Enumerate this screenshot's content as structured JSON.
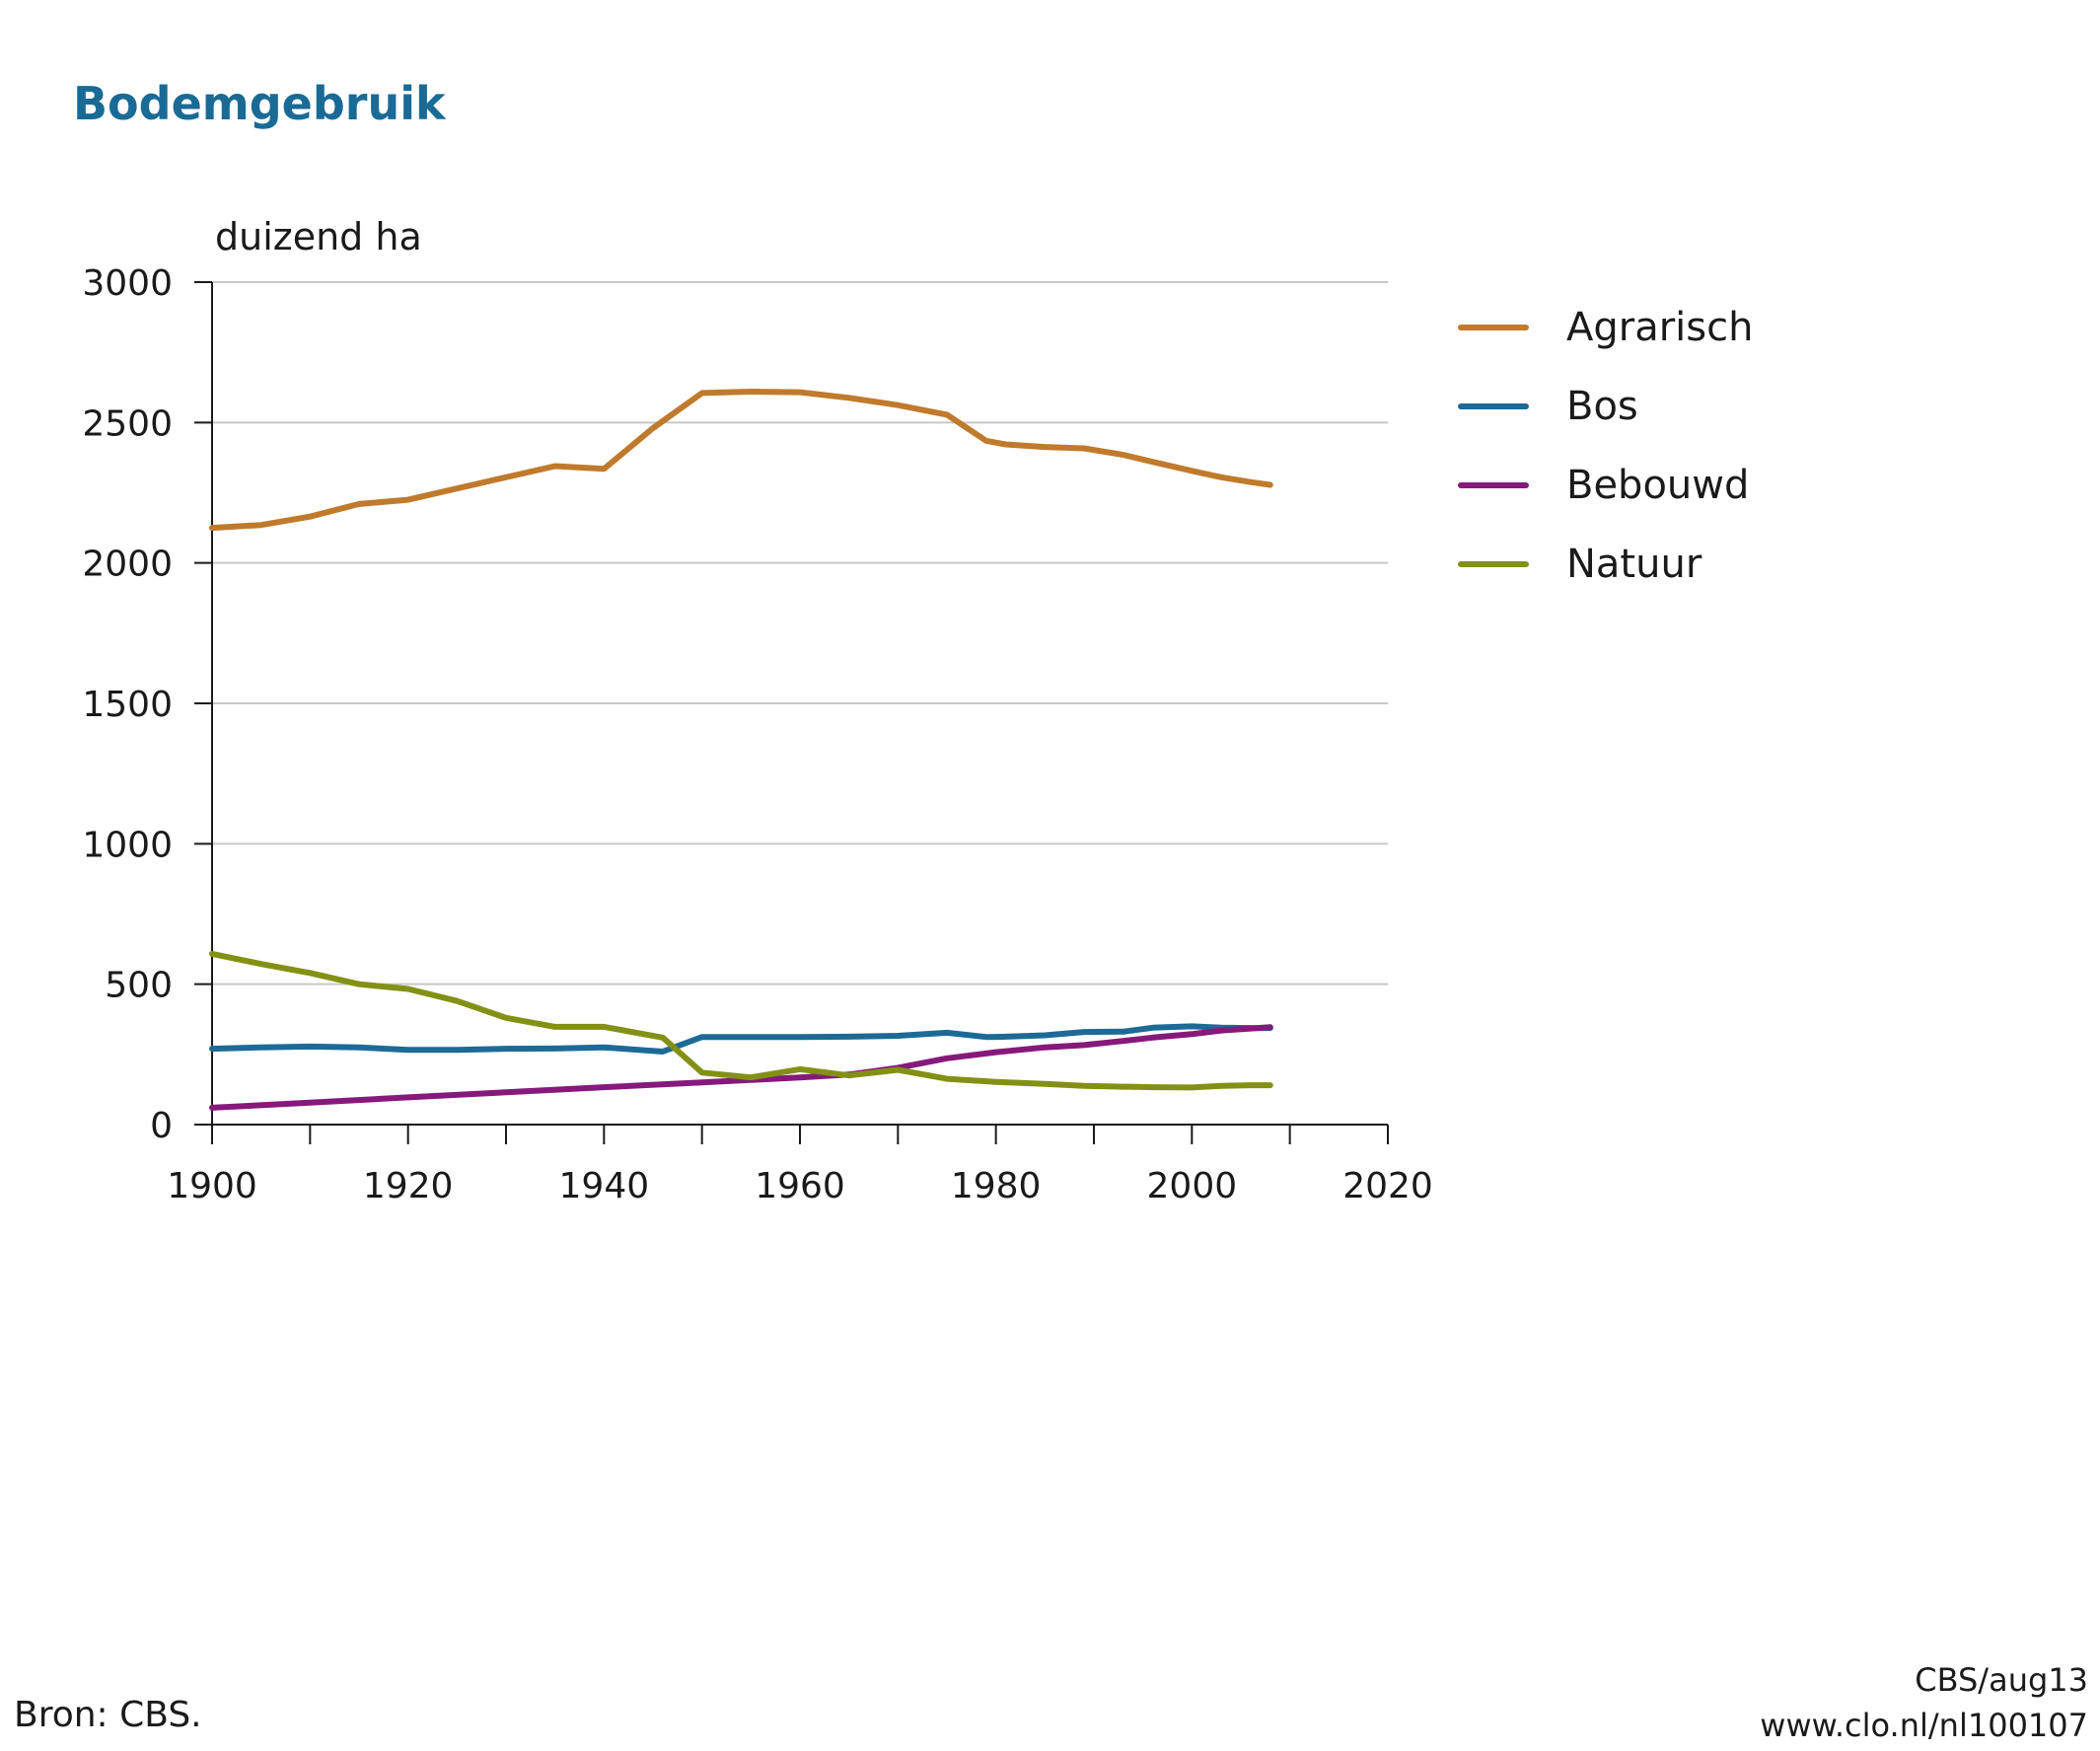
{
  "page": {
    "source": "Bron: CBS.",
    "credit_line1": "CBS/aug13",
    "credit_line2": "www.clo.nl/nl100107"
  },
  "chart_data": {
    "type": "line",
    "title": "Bodemgebruik",
    "ylabel": "duizend ha",
    "xlabel": "",
    "xlim": [
      1900,
      2020
    ],
    "ylim": [
      0,
      3000
    ],
    "x_ticks": [
      1900,
      1920,
      1940,
      1960,
      1980,
      2000,
      2020
    ],
    "y_ticks": [
      0,
      500,
      1000,
      1500,
      2000,
      2500,
      3000
    ],
    "grid": "horizontal",
    "legend_position": "right",
    "series": [
      {
        "name": "Agrarisch",
        "color": "#c07a2c",
        "points": [
          [
            1900,
            2125
          ],
          [
            1905,
            2135
          ],
          [
            1910,
            2165
          ],
          [
            1915,
            2210
          ],
          [
            1920,
            2225
          ],
          [
            1925,
            2265
          ],
          [
            1930,
            2305
          ],
          [
            1935,
            2345
          ],
          [
            1940,
            2335
          ],
          [
            1945,
            2480
          ],
          [
            1950,
            2605
          ],
          [
            1955,
            2610
          ],
          [
            1960,
            2608
          ],
          [
            1965,
            2588
          ],
          [
            1970,
            2562
          ],
          [
            1975,
            2528
          ],
          [
            1979,
            2435
          ],
          [
            1981,
            2422
          ],
          [
            1985,
            2413
          ],
          [
            1989,
            2408
          ],
          [
            1993,
            2385
          ],
          [
            1996,
            2360
          ],
          [
            2000,
            2328
          ],
          [
            2003,
            2305
          ],
          [
            2006,
            2288
          ],
          [
            2008,
            2278
          ]
        ]
      },
      {
        "name": "Bos",
        "color": "#1d6a97",
        "points": [
          [
            1900,
            270
          ],
          [
            1905,
            275
          ],
          [
            1910,
            278
          ],
          [
            1915,
            275
          ],
          [
            1920,
            266
          ],
          [
            1925,
            266
          ],
          [
            1930,
            270
          ],
          [
            1935,
            271
          ],
          [
            1940,
            275
          ],
          [
            1946,
            260
          ],
          [
            1950,
            312
          ],
          [
            1955,
            312
          ],
          [
            1960,
            312
          ],
          [
            1965,
            313
          ],
          [
            1970,
            316
          ],
          [
            1975,
            327
          ],
          [
            1979,
            312
          ],
          [
            1981,
            313
          ],
          [
            1985,
            318
          ],
          [
            1989,
            330
          ],
          [
            1993,
            331
          ],
          [
            1996,
            345
          ],
          [
            2000,
            350
          ],
          [
            2003,
            345
          ],
          [
            2006,
            344
          ],
          [
            2008,
            344
          ]
        ]
      },
      {
        "name": "Bebouwd",
        "color": "#86197b",
        "points": [
          [
            1900,
            60
          ],
          [
            1910,
            78
          ],
          [
            1920,
            97
          ],
          [
            1930,
            115
          ],
          [
            1940,
            133
          ],
          [
            1950,
            150
          ],
          [
            1960,
            168
          ],
          [
            1965,
            178
          ],
          [
            1970,
            202
          ],
          [
            1975,
            236
          ],
          [
            1980,
            258
          ],
          [
            1985,
            275
          ],
          [
            1989,
            283
          ],
          [
            1993,
            298
          ],
          [
            1996,
            310
          ],
          [
            2000,
            322
          ],
          [
            2003,
            335
          ],
          [
            2006,
            342
          ],
          [
            2008,
            347
          ]
        ]
      },
      {
        "name": "Natuur",
        "color": "#829114",
        "points": [
          [
            1900,
            608
          ],
          [
            1905,
            572
          ],
          [
            1910,
            540
          ],
          [
            1915,
            500
          ],
          [
            1920,
            483
          ],
          [
            1925,
            440
          ],
          [
            1930,
            380
          ],
          [
            1935,
            348
          ],
          [
            1940,
            348
          ],
          [
            1946,
            310
          ],
          [
            1950,
            185
          ],
          [
            1955,
            168
          ],
          [
            1960,
            197
          ],
          [
            1965,
            175
          ],
          [
            1970,
            195
          ],
          [
            1975,
            163
          ],
          [
            1980,
            152
          ],
          [
            1985,
            145
          ],
          [
            1989,
            138
          ],
          [
            1993,
            135
          ],
          [
            1996,
            133
          ],
          [
            2000,
            132
          ],
          [
            2003,
            138
          ],
          [
            2006,
            140
          ],
          [
            2008,
            140
          ]
        ]
      }
    ]
  }
}
